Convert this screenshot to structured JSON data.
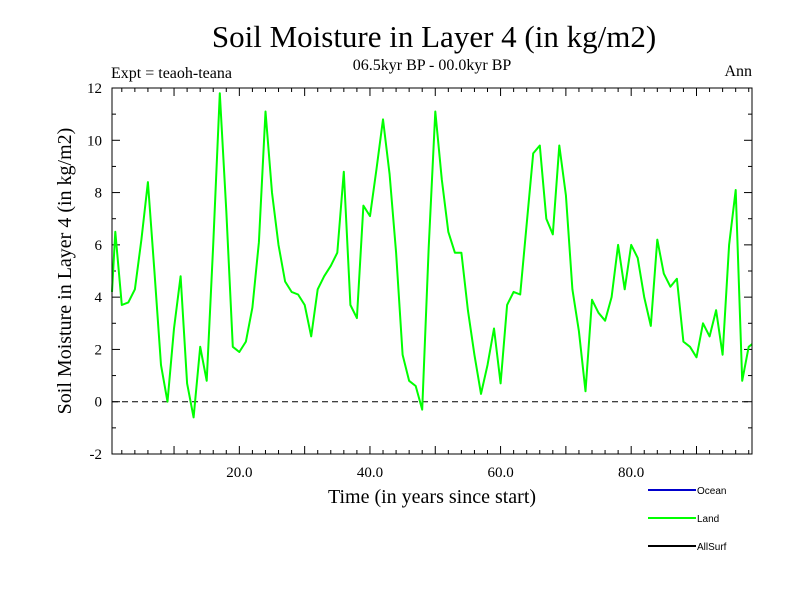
{
  "chart_data": {
    "type": "line",
    "title": "Soil Moisture in Layer 4 (in kg/m2)",
    "subtitle": "06.5kyr BP - 00.0kyr BP",
    "left_annotation": "Expt = teaoh-teana",
    "right_annotation": "Ann",
    "xlabel": "Time (in years since start)",
    "ylabel": "Soil Moisture in Layer 4 (in kg/m2)",
    "xlim": [
      0.5,
      98.5
    ],
    "ylim": [
      -2,
      12
    ],
    "x_ticks": [
      20,
      40,
      60,
      80
    ],
    "x_tick_labels": [
      "20.0",
      "40.0",
      "60.0",
      "80.0"
    ],
    "y_ticks": [
      -2,
      0,
      2,
      4,
      6,
      8,
      10,
      12
    ],
    "y_tick_labels": [
      "-2",
      "0",
      "2",
      "4",
      "6",
      "8",
      "10",
      "12"
    ],
    "zero_line": true,
    "legend_position": "bottom-right",
    "series": [
      {
        "name": "Ocean",
        "color": "#0000cc",
        "values": []
      },
      {
        "name": "Land",
        "color": "#00ff00",
        "x": [
          0.5,
          1,
          2,
          3,
          4,
          5,
          6,
          7,
          8,
          9,
          10,
          11,
          12,
          13,
          14,
          15,
          16,
          17,
          18,
          19,
          20,
          21,
          22,
          23,
          24,
          25,
          26,
          27,
          28,
          29,
          30,
          31,
          32,
          33,
          34,
          35,
          36,
          37,
          38,
          39,
          40,
          41,
          42,
          43,
          44,
          45,
          46,
          47,
          48,
          49,
          50,
          51,
          52,
          53,
          54,
          55,
          56,
          57,
          58,
          59,
          60,
          61,
          62,
          63,
          64,
          65,
          66,
          67,
          68,
          69,
          70,
          71,
          72,
          73,
          74,
          75,
          76,
          77,
          78,
          79,
          80,
          81,
          82,
          83,
          84,
          85,
          86,
          87,
          88,
          89,
          90,
          91,
          92,
          93,
          94,
          95,
          96,
          97,
          98,
          98.5
        ],
        "values": [
          4.2,
          6.5,
          3.7,
          3.8,
          4.3,
          6.2,
          8.4,
          5.0,
          1.4,
          0.0,
          2.8,
          4.8,
          0.7,
          -0.6,
          2.1,
          0.8,
          6.0,
          11.8,
          7.3,
          2.1,
          1.9,
          2.3,
          3.6,
          6.1,
          11.1,
          8.0,
          6.0,
          4.6,
          4.2,
          4.1,
          3.7,
          2.5,
          4.3,
          4.8,
          5.2,
          5.7,
          8.8,
          3.7,
          3.2,
          7.5,
          7.1,
          8.9,
          10.8,
          8.7,
          5.7,
          1.8,
          0.8,
          0.6,
          -0.3,
          5.9,
          11.1,
          8.5,
          6.5,
          5.7,
          5.7,
          3.5,
          1.8,
          0.3,
          1.4,
          2.8,
          0.7,
          3.7,
          4.2,
          4.1,
          6.8,
          9.5,
          9.8,
          7.0,
          6.4,
          9.8,
          7.9,
          4.3,
          2.7,
          0.4,
          3.9,
          3.4,
          3.1,
          4.0,
          6.0,
          4.3,
          6.0,
          5.5,
          4.0,
          2.9,
          6.2,
          4.9,
          4.4,
          4.7,
          2.3,
          2.1,
          1.7,
          3.0,
          2.5,
          3.5,
          1.8,
          6.0,
          8.1,
          0.8,
          2.1,
          2.2
        ]
      },
      {
        "name": "AllSurf",
        "color": "#000000",
        "values": []
      }
    ]
  }
}
